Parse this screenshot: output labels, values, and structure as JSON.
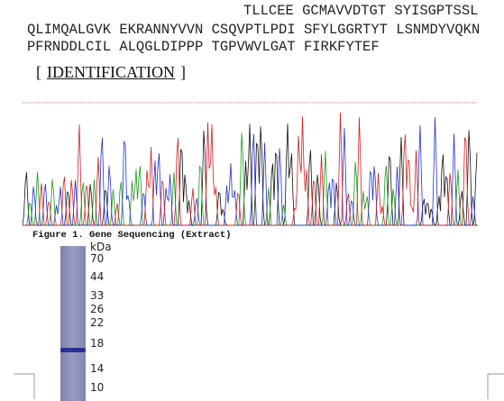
{
  "sequence": {
    "lines": [
      "TLLCEE GCMAVVDTGT SYISGPTSSL",
      "QLIMQALGVK EKRANNYVVN CSQVPTLPDI SFYLGGRTYT LSNMDYVQKN",
      "PFRNDDLCIL ALQGLDIPPP TGPVWVLGAT FIRKFYTEF"
    ]
  },
  "section": {
    "open_bracket": "[",
    "title": "IDENTIFICATION",
    "close_bracket": "]"
  },
  "figure": {
    "caption": "Figure 1. Gene Sequencing (Extract)"
  },
  "gel": {
    "unit": "kDa",
    "markers": [
      "70",
      "44",
      "33",
      "26",
      "22",
      "18",
      "14",
      "10"
    ]
  }
}
